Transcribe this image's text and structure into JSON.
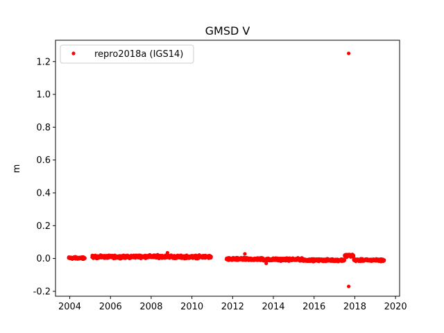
{
  "chart_data": {
    "type": "scatter",
    "title": "GMSD V",
    "xlabel": "",
    "ylabel": "m",
    "xlim": [
      2003.3,
      2020.2
    ],
    "ylim": [
      -0.23,
      1.33
    ],
    "xticks": [
      2004,
      2006,
      2008,
      2010,
      2012,
      2014,
      2016,
      2018,
      2020
    ],
    "yticks": [
      -0.2,
      0.0,
      0.2,
      0.4,
      0.6,
      0.8,
      1.0,
      1.2
    ],
    "grid": false,
    "legend_position": "top-left",
    "series": [
      {
        "name": "repro2018a (IGS14)",
        "color": "#ff0000",
        "marker": "circle",
        "segments": [
          {
            "x_start": 2003.95,
            "x_end": 2004.75,
            "mean": 0.003,
            "spread": 0.01
          },
          {
            "x_start": 2005.1,
            "x_end": 2007.0,
            "mean": 0.01,
            "spread": 0.012
          },
          {
            "x_start": 2007.0,
            "x_end": 2009.0,
            "mean": 0.012,
            "spread": 0.013
          },
          {
            "x_start": 2009.0,
            "x_end": 2010.95,
            "mean": 0.01,
            "spread": 0.013
          },
          {
            "x_start": 2011.7,
            "x_end": 2013.5,
            "mean": -0.004,
            "spread": 0.012
          },
          {
            "x_start": 2013.5,
            "x_end": 2015.5,
            "mean": -0.006,
            "spread": 0.012
          },
          {
            "x_start": 2015.5,
            "x_end": 2017.5,
            "mean": -0.01,
            "spread": 0.01
          },
          {
            "x_start": 2017.5,
            "x_end": 2017.95,
            "mean": 0.018,
            "spread": 0.012
          },
          {
            "x_start": 2017.95,
            "x_end": 2019.45,
            "mean": -0.01,
            "spread": 0.01
          }
        ],
        "outliers": [
          {
            "x": 2017.7,
            "y": 1.25
          },
          {
            "x": 2017.7,
            "y": -0.17
          },
          {
            "x": 2013.65,
            "y": -0.03
          },
          {
            "x": 2008.8,
            "y": 0.035
          },
          {
            "x": 2012.6,
            "y": 0.028
          }
        ]
      }
    ]
  }
}
